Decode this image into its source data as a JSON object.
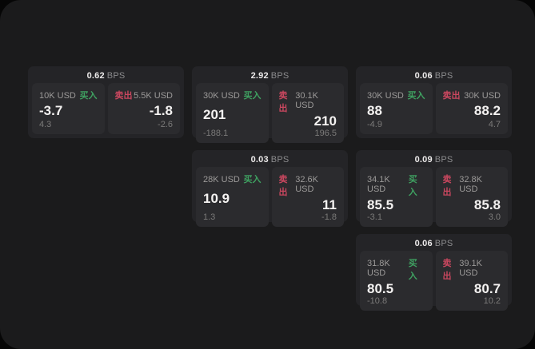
{
  "labels": {
    "buy": "买入",
    "sell": "卖出",
    "bps_unit": "BPS"
  },
  "colors": {
    "buy": "#3fa161",
    "sell": "#c9475f",
    "page_background": "#1b1b1c",
    "card_background": "#242427",
    "tile_background": "#2b2b2e"
  },
  "cards": [
    {
      "bps": "0.62",
      "buy": {
        "amount": "10K USD",
        "price": "-3.7",
        "change": "4.3"
      },
      "sell": {
        "amount": "5.5K USD",
        "price": "-1.8",
        "change": "-2.6"
      }
    },
    {
      "bps": "2.92",
      "buy": {
        "amount": "30K USD",
        "price": "201",
        "change": "-188.1"
      },
      "sell": {
        "amount": "30.1K USD",
        "price": "210",
        "change": "196.5"
      }
    },
    {
      "bps": "0.06",
      "buy": {
        "amount": "30K USD",
        "price": "88",
        "change": "-4.9"
      },
      "sell": {
        "amount": "30K USD",
        "price": "88.2",
        "change": "4.7"
      }
    },
    {
      "bps": "0.03",
      "buy": {
        "amount": "28K USD",
        "price": "10.9",
        "change": "1.3"
      },
      "sell": {
        "amount": "32.6K USD",
        "price": "11",
        "change": "-1.8"
      }
    },
    {
      "bps": "0.09",
      "buy": {
        "amount": "34.1K USD",
        "price": "85.5",
        "change": "-3.1"
      },
      "sell": {
        "amount": "32.8K USD",
        "price": "85.8",
        "change": "3.0"
      }
    },
    {
      "bps": "0.06",
      "buy": {
        "amount": "31.8K USD",
        "price": "80.5",
        "change": "-10.8"
      },
      "sell": {
        "amount": "39.1K USD",
        "price": "80.7",
        "change": "10.2"
      }
    }
  ]
}
